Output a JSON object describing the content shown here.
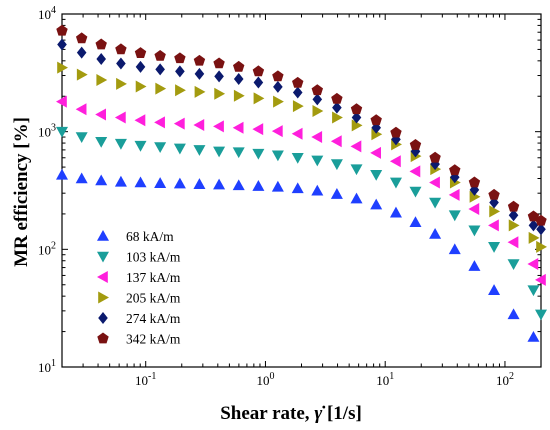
{
  "chart_data": {
    "type": "scatter",
    "xlabel": "Shear rate, γ̇ [1/s]",
    "ylabel": "MR efficiency [%]",
    "x_scale": "log",
    "y_scale": "log",
    "xlim": [
      0.02,
      200
    ],
    "ylim": [
      10,
      10000
    ],
    "x_ticks": [
      {
        "value": 0.1,
        "base": "10",
        "exp": "-1"
      },
      {
        "value": 1,
        "base": "10",
        "exp": "0"
      },
      {
        "value": 10,
        "base": "10",
        "exp": "1"
      },
      {
        "value": 100,
        "base": "10",
        "exp": "2"
      }
    ],
    "y_ticks": [
      {
        "value": 10,
        "base": "10",
        "exp": "1"
      },
      {
        "value": 100,
        "base": "10",
        "exp": "2"
      },
      {
        "value": 1000,
        "base": "10",
        "exp": "3"
      },
      {
        "value": 10000,
        "base": "10",
        "exp": "4"
      }
    ],
    "grid": false,
    "legend_position": "lower-left",
    "x": [
      0.02,
      0.0292,
      0.0425,
      0.0621,
      0.0905,
      0.132,
      0.193,
      0.281,
      0.41,
      0.598,
      0.873,
      1.27,
      1.86,
      2.71,
      3.95,
      5.76,
      8.41,
      12.3,
      17.9,
      26.1,
      38.1,
      55.6,
      81.1,
      118,
      173
    ],
    "series": [
      {
        "name": "68 kA/m",
        "marker": "triangle-up",
        "color": "#1f3fff",
        "x": [
          0.02,
          0.0292,
          0.0425,
          0.0621,
          0.0905,
          0.132,
          0.193,
          0.281,
          0.41,
          0.598,
          0.873,
          1.27,
          1.86,
          2.71,
          3.95,
          5.76,
          8.41,
          12.3,
          17.9,
          26.1,
          38.1,
          55.6,
          81.1,
          118,
          173
        ],
        "values": [
          430,
          400,
          385,
          375,
          370,
          365,
          362,
          358,
          355,
          350,
          345,
          340,
          330,
          315,
          295,
          270,
          240,
          205,
          170,
          135,
          100,
          72,
          45,
          28,
          18
        ]
      },
      {
        "name": "103 kA/m",
        "marker": "triangle-down",
        "color": "#1a9e9a",
        "x": [
          0.02,
          0.0292,
          0.0425,
          0.0621,
          0.0905,
          0.132,
          0.193,
          0.281,
          0.41,
          0.598,
          0.873,
          1.27,
          1.86,
          2.71,
          3.95,
          5.76,
          8.41,
          12.3,
          17.9,
          26.1,
          38.1,
          55.6,
          81.1,
          118,
          173,
          200
        ],
        "values": [
          1000,
          900,
          820,
          790,
          760,
          740,
          720,
          700,
          680,
          670,
          650,
          630,
          600,
          570,
          530,
          480,
          430,
          370,
          310,
          250,
          195,
          145,
          105,
          75,
          45,
          28
        ]
      },
      {
        "name": "137 kA/m",
        "marker": "triangle-left",
        "color": "#ff1fdc",
        "x": [
          0.02,
          0.0292,
          0.0425,
          0.0621,
          0.0905,
          0.132,
          0.193,
          0.281,
          0.41,
          0.598,
          0.873,
          1.27,
          1.86,
          2.71,
          3.95,
          5.76,
          8.41,
          12.3,
          17.9,
          26.1,
          38.1,
          55.6,
          81.1,
          118,
          173,
          200
        ],
        "values": [
          1800,
          1550,
          1400,
          1320,
          1250,
          1200,
          1170,
          1140,
          1110,
          1080,
          1050,
          1010,
          960,
          900,
          830,
          750,
          660,
          560,
          460,
          370,
          290,
          220,
          160,
          115,
          75,
          55
        ]
      },
      {
        "name": "205 kA/m",
        "marker": "triangle-right",
        "color": "#a39b0f",
        "x": [
          0.02,
          0.0292,
          0.0425,
          0.0621,
          0.0905,
          0.132,
          0.193,
          0.281,
          0.41,
          0.598,
          0.873,
          1.27,
          1.86,
          2.71,
          3.95,
          5.76,
          8.41,
          12.3,
          17.9,
          26.1,
          38.1,
          55.6,
          81.1,
          118,
          173,
          200
        ],
        "values": [
          3500,
          3050,
          2750,
          2550,
          2420,
          2320,
          2250,
          2180,
          2100,
          2020,
          1920,
          1800,
          1650,
          1500,
          1320,
          1130,
          950,
          780,
          620,
          480,
          370,
          280,
          210,
          160,
          125,
          105
        ]
      },
      {
        "name": "274 kA/m",
        "marker": "diamond",
        "color": "#0b1a6e",
        "x": [
          0.02,
          0.0292,
          0.0425,
          0.0621,
          0.0905,
          0.132,
          0.193,
          0.281,
          0.41,
          0.598,
          0.873,
          1.27,
          1.86,
          2.71,
          3.95,
          5.76,
          8.41,
          12.3,
          17.9,
          26.1,
          38.1,
          55.6,
          81.1,
          118,
          173,
          200
        ],
        "values": [
          5500,
          4700,
          4150,
          3800,
          3550,
          3380,
          3250,
          3100,
          2950,
          2800,
          2620,
          2400,
          2150,
          1880,
          1600,
          1320,
          1080,
          860,
          680,
          530,
          410,
          320,
          250,
          195,
          160,
          148
        ]
      },
      {
        "name": "342 kA/m",
        "marker": "pentagon",
        "color": "#7a1212",
        "x": [
          0.02,
          0.0292,
          0.0425,
          0.0621,
          0.0905,
          0.132,
          0.193,
          0.281,
          0.41,
          0.598,
          0.873,
          1.27,
          1.86,
          2.71,
          3.95,
          5.76,
          8.41,
          12.3,
          17.9,
          26.1,
          38.1,
          55.6,
          81.1,
          118,
          173,
          200
        ],
        "values": [
          7200,
          6200,
          5500,
          5000,
          4650,
          4400,
          4200,
          4000,
          3800,
          3550,
          3250,
          2950,
          2600,
          2250,
          1900,
          1550,
          1250,
          980,
          770,
          600,
          470,
          370,
          290,
          230,
          190,
          175
        ]
      }
    ]
  }
}
